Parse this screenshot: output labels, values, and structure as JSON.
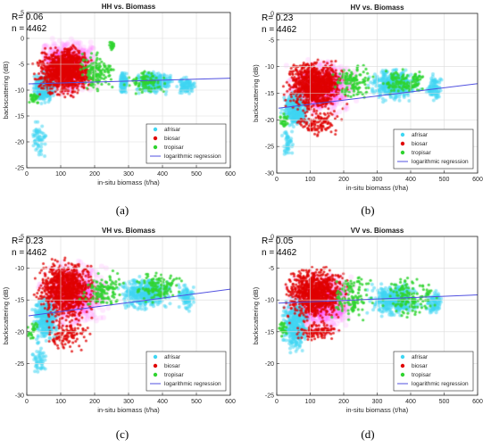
{
  "figure": {
    "background": "#ffffff"
  },
  "colors": {
    "afrisar": "#3fd6f2",
    "biosar": "#e00000",
    "tropisar": "#2fd32f",
    "regression": "#5050e0",
    "magenta_cloud": "#ff40ff"
  },
  "chart_data": [
    {
      "type": "scatter",
      "title": "HH vs. Biomass",
      "xlabel": "in-situ biomass (t/ha)",
      "ylabel": "backscattering (dB)",
      "xlim": [
        0,
        600
      ],
      "ylim": [
        -25,
        5
      ],
      "xticks": [
        "0",
        "100",
        "200",
        "300",
        "400",
        "500",
        "600"
      ],
      "yticks": [
        "5",
        "0",
        "-5",
        "-10",
        "-15",
        "-20",
        "-25"
      ],
      "grid": true,
      "legend_location": "lower right",
      "annotations": {
        "r": "R= 0.06",
        "n": "n = 4462"
      },
      "caption": "(a)",
      "regression": {
        "name": "logarithmic regression",
        "x": [
          5,
          600
        ],
        "y": [
          -8.8,
          -7.7
        ]
      },
      "series": [
        {
          "name": "afrisar",
          "clusters": [
            {
              "x": [
                10,
                90
              ],
              "y": [
                -13,
                -6
              ],
              "count": 380
            },
            {
              "x": [
                270,
                300
              ],
              "y": [
                -11,
                -6
              ],
              "count": 140
            },
            {
              "x": [
                315,
                440
              ],
              "y": [
                -11,
                -6
              ],
              "count": 320
            },
            {
              "x": [
                440,
                500
              ],
              "y": [
                -11,
                -7
              ],
              "count": 100
            },
            {
              "x": [
                10,
                60
              ],
              "y": [
                -24,
                -15
              ],
              "count": 60
            }
          ]
        },
        {
          "name": "biosar",
          "clusters": [
            {
              "x": [
                10,
                210
              ],
              "y": [
                -12,
                -1
              ],
              "count": 900
            },
            {
              "x": [
                60,
                190
              ],
              "y": [
                -11,
                0
              ],
              "count": 250
            }
          ]
        },
        {
          "name": "tropisar",
          "clusters": [
            {
              "x": [
                140,
                270
              ],
              "y": [
                -11,
                -2
              ],
              "count": 140
            },
            {
              "x": [
                270,
                430
              ],
              "y": [
                -11,
                -6
              ],
              "count": 90
            },
            {
              "x": [
                0,
                40
              ],
              "y": [
                -13,
                -10
              ],
              "count": 25
            },
            {
              "x": [
                240,
                260
              ],
              "y": [
                -3,
                0
              ],
              "count": 20
            }
          ]
        }
      ],
      "magenta_cloud": [
        [
          15,
          230
        ],
        [
          -12,
          1
        ]
      ]
    },
    {
      "type": "scatter",
      "title": "HV vs. Biomass",
      "xlabel": "in-situ biomass (t/ha)",
      "ylabel": "backscattering (dB)",
      "xlim": [
        0,
        600
      ],
      "ylim": [
        -30,
        0
      ],
      "xticks": [
        "0",
        "100",
        "200",
        "300",
        "400",
        "500",
        "600"
      ],
      "yticks": [
        "0",
        "-5",
        "-10",
        "-15",
        "-20",
        "-25",
        "-30"
      ],
      "grid": true,
      "legend_location": "lower right",
      "annotations": {
        "r": "R= 0.23",
        "n": "n = 4462"
      },
      "caption": "(b)",
      "regression": {
        "name": "logarithmic regression",
        "x": [
          5,
          600
        ],
        "y": [
          -17.8,
          -13.2
        ]
      },
      "series": [
        {
          "name": "afrisar",
          "clusters": [
            {
              "x": [
                10,
                100
              ],
              "y": [
                -22,
                -14
              ],
              "count": 360
            },
            {
              "x": [
                260,
                440
              ],
              "y": [
                -17,
                -10
              ],
              "count": 420
            },
            {
              "x": [
                440,
                500
              ],
              "y": [
                -17,
                -11
              ],
              "count": 90
            },
            {
              "x": [
                10,
                60
              ],
              "y": [
                -28,
                -21
              ],
              "count": 50
            }
          ]
        },
        {
          "name": "biosar",
          "clusters": [
            {
              "x": [
                10,
                220
              ],
              "y": [
                -19,
                -8
              ],
              "count": 950
            },
            {
              "x": [
                40,
                200
              ],
              "y": [
                -24,
                -17
              ],
              "count": 120
            }
          ]
        },
        {
          "name": "tropisar",
          "clusters": [
            {
              "x": [
                150,
                300
              ],
              "y": [
                -17,
                -9
              ],
              "count": 120
            },
            {
              "x": [
                300,
                470
              ],
              "y": [
                -16,
                -10
              ],
              "count": 120
            },
            {
              "x": [
                0,
                40
              ],
              "y": [
                -22,
                -18
              ],
              "count": 25
            }
          ]
        }
      ],
      "magenta_cloud": [
        [
          15,
          260
        ],
        [
          -20,
          -8
        ]
      ]
    },
    {
      "type": "scatter",
      "title": "VH vs. Biomass",
      "xlabel": "in-situ biomass (t/ha)",
      "ylabel": "backscattering (dB)",
      "xlim": [
        0,
        600
      ],
      "ylim": [
        -30,
        -5
      ],
      "xticks": [
        "0",
        "100",
        "200",
        "300",
        "400",
        "500",
        "600"
      ],
      "yticks": [
        "-5",
        "-10",
        "-15",
        "-20",
        "-25",
        "-30"
      ],
      "grid": true,
      "legend_location": "lower right",
      "annotations": {
        "r": "R= 0.23",
        "n": "n = 4462"
      },
      "caption": "(c)",
      "regression": {
        "name": "logarithmic regression",
        "x": [
          5,
          600
        ],
        "y": [
          -17.5,
          -13.3
        ]
      },
      "series": [
        {
          "name": "afrisar",
          "clusters": [
            {
              "x": [
                10,
                100
              ],
              "y": [
                -22,
                -14
              ],
              "count": 360
            },
            {
              "x": [
                260,
                440
              ],
              "y": [
                -17,
                -11
              ],
              "count": 420
            },
            {
              "x": [
                440,
                500
              ],
              "y": [
                -17,
                -12
              ],
              "count": 90
            },
            {
              "x": [
                10,
                60
              ],
              "y": [
                -28,
                -21
              ],
              "count": 50
            }
          ]
        },
        {
          "name": "biosar",
          "clusters": [
            {
              "x": [
                10,
                220
              ],
              "y": [
                -19,
                -8
              ],
              "count": 950
            },
            {
              "x": [
                40,
                200
              ],
              "y": [
                -24,
                -17
              ],
              "count": 120
            }
          ]
        },
        {
          "name": "tropisar",
          "clusters": [
            {
              "x": [
                150,
                300
              ],
              "y": [
                -17,
                -10
              ],
              "count": 120
            },
            {
              "x": [
                300,
                480
              ],
              "y": [
                -16,
                -10
              ],
              "count": 120
            },
            {
              "x": [
                0,
                40
              ],
              "y": [
                -22,
                -18
              ],
              "count": 25
            }
          ]
        }
      ],
      "magenta_cloud": [
        [
          15,
          260
        ],
        [
          -20,
          -8
        ]
      ]
    },
    {
      "type": "scatter",
      "title": "VV vs. Biomass",
      "xlabel": "in-situ biomass (t/ha)",
      "ylabel": "backscattering (dB)",
      "xlim": [
        0,
        600
      ],
      "ylim": [
        -25,
        0
      ],
      "xticks": [
        "0",
        "100",
        "200",
        "300",
        "400",
        "500",
        "600"
      ],
      "yticks": [
        "0",
        "-5",
        "-10",
        "-15",
        "-20",
        "-25"
      ],
      "grid": true,
      "legend_location": "lower right",
      "annotations": {
        "r": "R= 0.05",
        "n": "n = 4462"
      },
      "caption": "(d)",
      "regression": {
        "name": "logarithmic regression",
        "x": [
          5,
          600
        ],
        "y": [
          -10.5,
          -9.2
        ]
      },
      "series": [
        {
          "name": "afrisar",
          "clusters": [
            {
              "x": [
                10,
                100
              ],
              "y": [
                -19,
                -9
              ],
              "count": 360
            },
            {
              "x": [
                260,
                440
              ],
              "y": [
                -13,
                -7
              ],
              "count": 420
            },
            {
              "x": [
                440,
                500
              ],
              "y": [
                -13,
                -8
              ],
              "count": 90
            }
          ]
        },
        {
          "name": "biosar",
          "clusters": [
            {
              "x": [
                10,
                220
              ],
              "y": [
                -14,
                -4
              ],
              "count": 950
            },
            {
              "x": [
                40,
                200
              ],
              "y": [
                -17,
                -13
              ],
              "count": 100
            }
          ]
        },
        {
          "name": "tropisar",
          "clusters": [
            {
              "x": [
                150,
                300
              ],
              "y": [
                -14,
                -5
              ],
              "count": 120
            },
            {
              "x": [
                300,
                500
              ],
              "y": [
                -13,
                -6
              ],
              "count": 140
            },
            {
              "x": [
                0,
                40
              ],
              "y": [
                -16,
                -13
              ],
              "count": 25
            }
          ]
        }
      ],
      "magenta_cloud": [
        [
          15,
          260
        ],
        [
          -16,
          -5
        ]
      ]
    }
  ]
}
